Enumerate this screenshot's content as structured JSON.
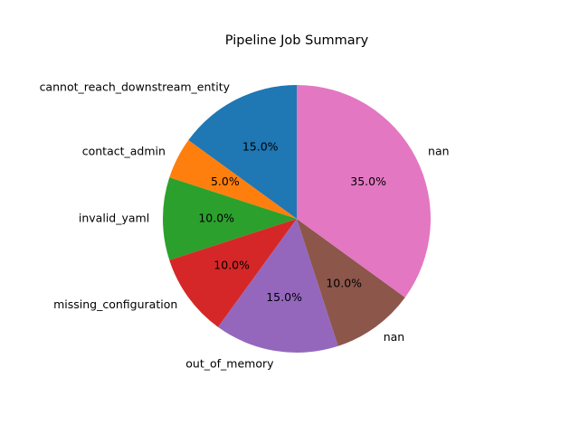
{
  "chart_data": {
    "type": "pie",
    "title": "Pipeline Job Summary",
    "labels": [
      "cannot_reach_downstream_entity",
      "contact_admin",
      "invalid_yaml",
      "missing_configuration",
      "out_of_memory",
      "nan",
      "nan"
    ],
    "values": [
      15.0,
      5.0,
      10.0,
      10.0,
      15.0,
      10.0,
      35.0
    ],
    "percent_labels": [
      "15.0%",
      "5.0%",
      "10.0%",
      "10.0%",
      "15.0%",
      "10.0%",
      "35.0%"
    ],
    "colors": [
      "#1f77b4",
      "#ff7f0e",
      "#2ca02c",
      "#d62728",
      "#9467bd",
      "#8c564b",
      "#e377c2"
    ],
    "start_angle_deg": 90,
    "direction": "counterclockwise"
  }
}
